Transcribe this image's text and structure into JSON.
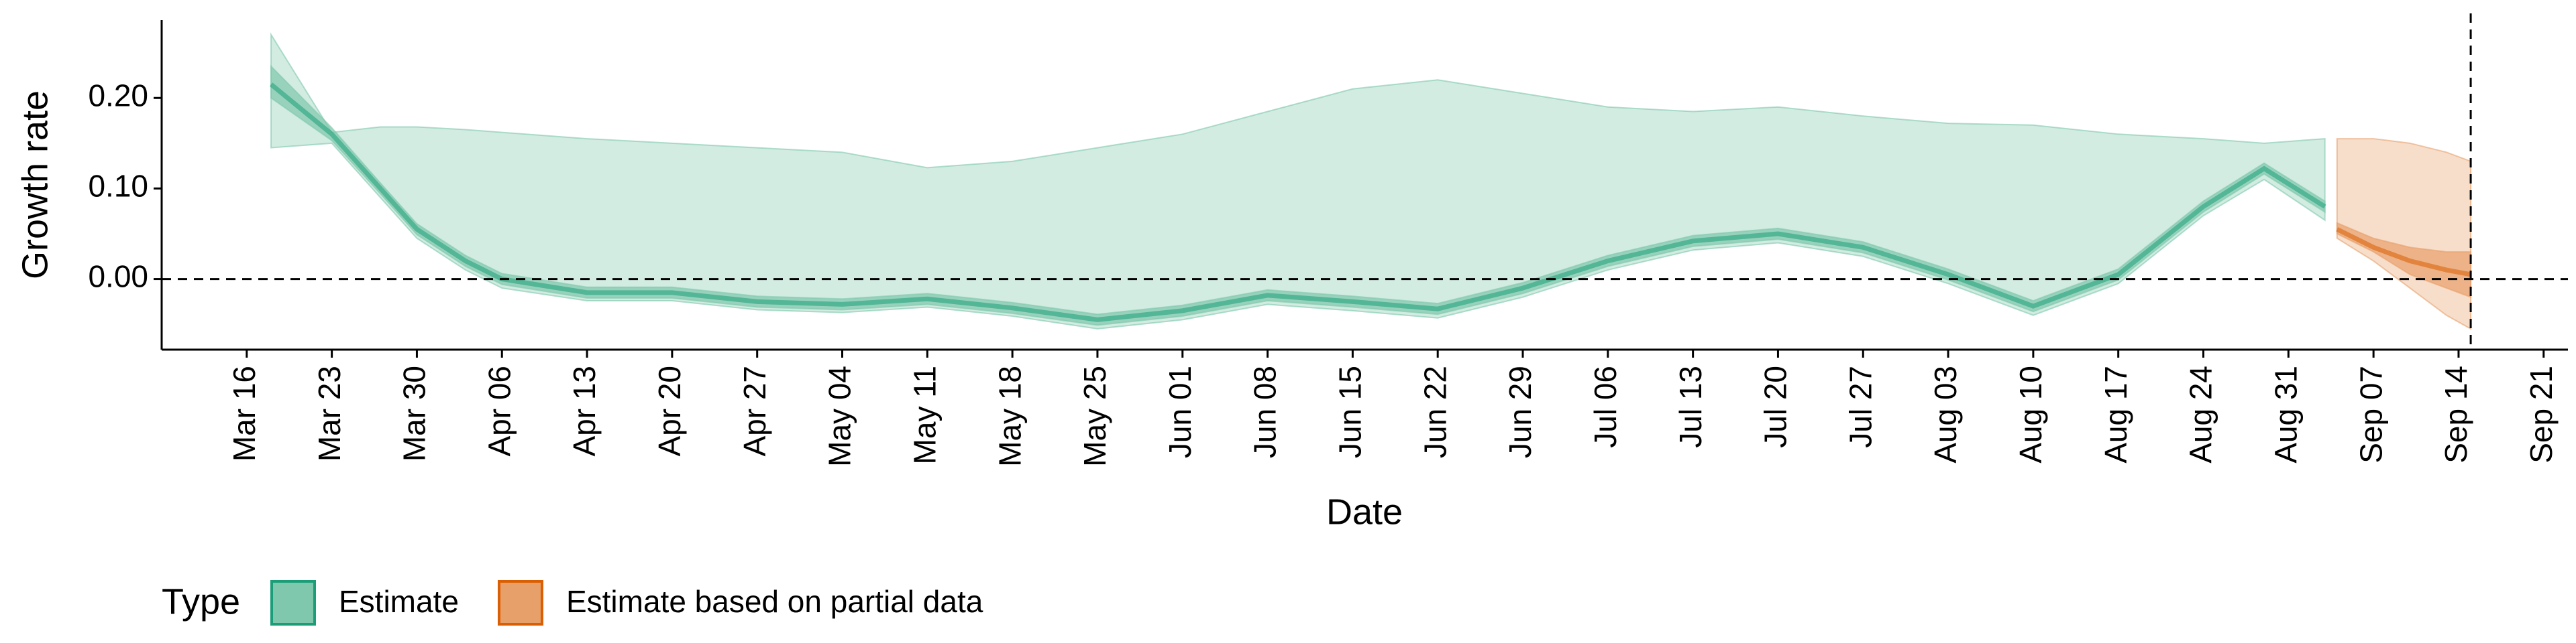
{
  "chart_data": {
    "type": "ribbon",
    "x_label": "Date",
    "y_label": "Growth rate",
    "legend_title": "Type",
    "legend_position": "bottom",
    "xlim": [
      "Mar 09",
      "Sep 23"
    ],
    "xticks": [
      "Mar 16",
      "Mar 23",
      "Mar 30",
      "Apr 06",
      "Apr 13",
      "Apr 20",
      "Apr 27",
      "May 04",
      "May 11",
      "May 18",
      "May 25",
      "Jun 01",
      "Jun 08",
      "Jun 15",
      "Jun 22",
      "Jun 29",
      "Jul 06",
      "Jul 13",
      "Jul 20",
      "Jul 27",
      "Aug 03",
      "Aug 10",
      "Aug 17",
      "Aug 24",
      "Aug 31",
      "Sep 07",
      "Sep 14",
      "Sep 21"
    ],
    "ylim": [
      -0.078,
      0.286
    ],
    "yticks": [
      {
        "value": 0,
        "label": "0.00"
      },
      {
        "value": 0.1,
        "label": "0.10"
      },
      {
        "value": 0.2,
        "label": "0.20"
      }
    ],
    "hline": 0,
    "vline": "Sep 15",
    "series": [
      {
        "name": "Estimate",
        "color": "#1b9e77",
        "fill": "#7fc8ad",
        "x": [
          "Mar 18",
          "Mar 23",
          "Mar 27",
          "Mar 30",
          "Apr 03",
          "Apr 06",
          "Apr 13",
          "Apr 20",
          "Apr 27",
          "May 04",
          "May 11",
          "May 18",
          "May 25",
          "Jun 01",
          "Jun 08",
          "Jun 15",
          "Jun 22",
          "Jun 29",
          "Jul 06",
          "Jul 13",
          "Jul 20",
          "Jul 27",
          "Aug 03",
          "Aug 10",
          "Aug 17",
          "Aug 24",
          "Aug 29",
          "Sep 03"
        ],
        "median": [
          0.215,
          0.16,
          0.1,
          0.055,
          0.02,
          0.0,
          -0.015,
          -0.015,
          -0.025,
          -0.028,
          -0.022,
          -0.032,
          -0.045,
          -0.035,
          -0.018,
          -0.025,
          -0.033,
          -0.01,
          0.02,
          0.042,
          0.05,
          0.035,
          0.005,
          -0.03,
          0.005,
          0.08,
          0.122,
          0.08
        ],
        "lower_90": [
          0.145,
          0.15,
          0.09,
          0.045,
          0.01,
          -0.01,
          -0.024,
          -0.024,
          -0.034,
          -0.037,
          -0.031,
          -0.041,
          -0.055,
          -0.045,
          -0.028,
          -0.035,
          -0.043,
          -0.02,
          0.01,
          0.032,
          0.04,
          0.025,
          -0.005,
          -0.04,
          -0.005,
          0.07,
          0.11,
          0.065
        ],
        "upper_90": [
          0.27,
          0.162,
          0.168,
          0.168,
          0.165,
          0.162,
          0.155,
          0.15,
          0.145,
          0.14,
          0.123,
          0.13,
          0.145,
          0.16,
          0.185,
          0.21,
          0.22,
          0.205,
          0.19,
          0.185,
          0.19,
          0.18,
          0.172,
          0.17,
          0.16,
          0.155,
          0.15,
          0.155
        ],
        "lower_50": [
          0.2,
          0.153,
          0.094,
          0.049,
          0.014,
          -0.006,
          -0.021,
          -0.021,
          -0.031,
          -0.034,
          -0.028,
          -0.038,
          -0.051,
          -0.041,
          -0.024,
          -0.031,
          -0.039,
          -0.016,
          0.014,
          0.036,
          0.044,
          0.029,
          -0.001,
          -0.036,
          -0.001,
          0.074,
          0.116,
          0.074
        ],
        "upper_50": [
          0.235,
          0.167,
          0.106,
          0.061,
          0.026,
          0.006,
          -0.009,
          -0.009,
          -0.019,
          -0.022,
          -0.016,
          -0.026,
          -0.039,
          -0.029,
          -0.012,
          -0.019,
          -0.027,
          -0.004,
          0.026,
          0.048,
          0.056,
          0.041,
          0.011,
          -0.024,
          0.011,
          0.086,
          0.128,
          0.086
        ]
      },
      {
        "name": "Estimate based on partial data",
        "color": "#d95f02",
        "fill": "#e8a06a",
        "x": [
          "Sep 04",
          "Sep 07",
          "Sep 10",
          "Sep 13",
          "Sep 15"
        ],
        "median": [
          0.055,
          0.035,
          0.02,
          0.01,
          0.005
        ],
        "lower_90": [
          0.045,
          0.02,
          -0.01,
          -0.04,
          -0.055
        ],
        "upper_90": [
          0.155,
          0.155,
          0.15,
          0.14,
          0.13
        ],
        "lower_50": [
          0.05,
          0.03,
          0.005,
          -0.01,
          -0.02
        ],
        "upper_50": [
          0.062,
          0.045,
          0.035,
          0.03,
          0.03
        ]
      }
    ]
  }
}
